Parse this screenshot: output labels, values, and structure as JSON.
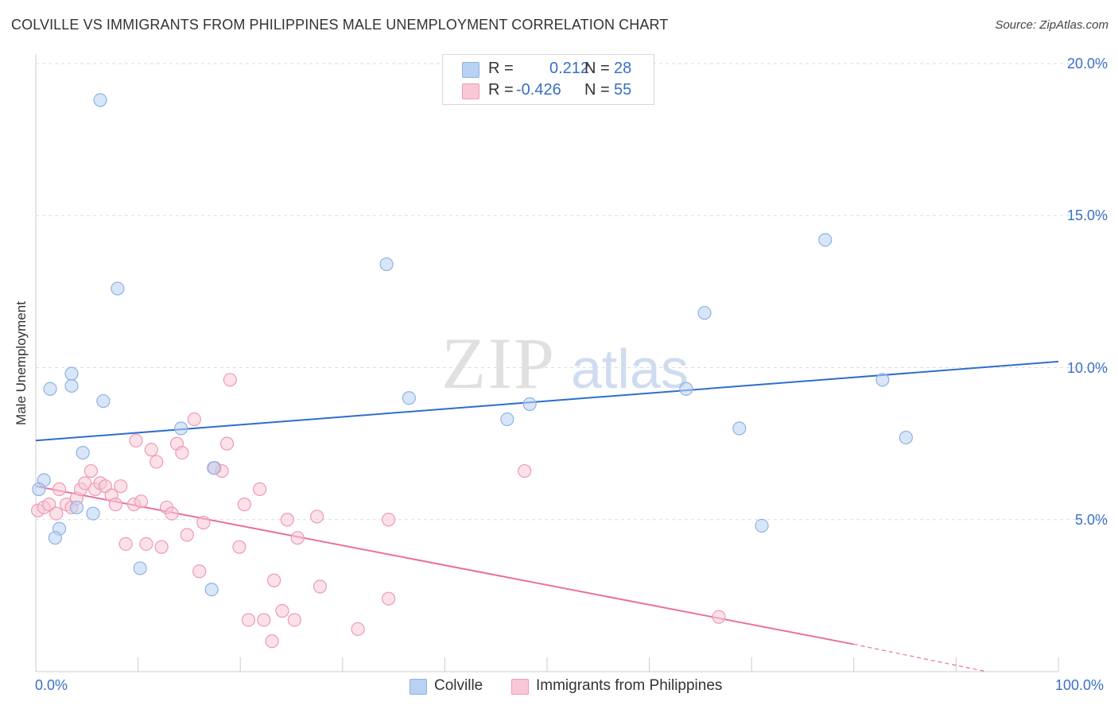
{
  "title": "COLVILLE VS IMMIGRANTS FROM PHILIPPINES MALE UNEMPLOYMENT CORRELATION CHART",
  "source": "Source: ZipAtlas.com",
  "watermark": {
    "zip": "ZIP",
    "atlas": "atlas"
  },
  "legend": {
    "r_label": "R =",
    "n_label": "N =",
    "colville": {
      "r": "0.212",
      "n": "28"
    },
    "philippines": {
      "r": "-0.426",
      "n": "55"
    }
  },
  "colors": {
    "blue_fill": "#b9d1f3",
    "blue_stroke": "#8db2e6",
    "blue_line": "#2e6fca",
    "pink_fill": "#f8c8d6",
    "pink_stroke": "#ee9ab4",
    "pink_line": "#e8719a",
    "axis_text": "#3a6fc4",
    "grid": "#dddddd"
  },
  "chart_data": {
    "type": "scatter",
    "title": "COLVILLE VS IMMIGRANTS FROM PHILIPPINES MALE UNEMPLOYMENT CORRELATION CHART",
    "xlabel": "",
    "ylabel": "Male Unemployment",
    "xlim": [
      0,
      100
    ],
    "ylim": [
      0,
      20
    ],
    "x_tick_labels": [
      "0.0%",
      "100.0%"
    ],
    "y_ticks": [
      5,
      10,
      15,
      20
    ],
    "y_tick_labels": [
      "5.0%",
      "10.0%",
      "15.0%",
      "20.0%"
    ],
    "grid": true,
    "series": [
      {
        "name": "Colville",
        "trend": {
          "x": [
            0,
            100
          ],
          "y": [
            7.6,
            10.2
          ]
        },
        "points": [
          {
            "x": 6.3,
            "y": 18.8
          },
          {
            "x": 8.0,
            "y": 12.6
          },
          {
            "x": 3.5,
            "y": 9.8
          },
          {
            "x": 1.4,
            "y": 9.3
          },
          {
            "x": 3.5,
            "y": 9.4
          },
          {
            "x": 6.6,
            "y": 8.9
          },
          {
            "x": 4.6,
            "y": 7.2
          },
          {
            "x": 14.2,
            "y": 8.0
          },
          {
            "x": 17.4,
            "y": 6.7
          },
          {
            "x": 0.8,
            "y": 6.3
          },
          {
            "x": 0.3,
            "y": 6.0
          },
          {
            "x": 4.0,
            "y": 5.4
          },
          {
            "x": 5.6,
            "y": 5.2
          },
          {
            "x": 2.3,
            "y": 4.7
          },
          {
            "x": 1.9,
            "y": 4.4
          },
          {
            "x": 10.2,
            "y": 3.4
          },
          {
            "x": 17.2,
            "y": 2.7
          },
          {
            "x": 34.3,
            "y": 13.4
          },
          {
            "x": 36.5,
            "y": 9.0
          },
          {
            "x": 46.1,
            "y": 8.3
          },
          {
            "x": 48.3,
            "y": 8.8
          },
          {
            "x": 63.6,
            "y": 9.3
          },
          {
            "x": 65.4,
            "y": 11.8
          },
          {
            "x": 68.8,
            "y": 8.0
          },
          {
            "x": 71.0,
            "y": 4.8
          },
          {
            "x": 77.2,
            "y": 14.2
          },
          {
            "x": 82.8,
            "y": 9.6
          },
          {
            "x": 85.1,
            "y": 7.7
          }
        ]
      },
      {
        "name": "Immigrants from Philippines",
        "trend": {
          "x": [
            0,
            80
          ],
          "y": [
            6.1,
            0.9
          ],
          "dashed_extension": {
            "x": [
              80,
              93
            ],
            "y": [
              0.9,
              0.0
            ]
          }
        },
        "points": [
          {
            "x": 0.2,
            "y": 5.3
          },
          {
            "x": 0.8,
            "y": 5.4
          },
          {
            "x": 1.3,
            "y": 5.5
          },
          {
            "x": 2.0,
            "y": 5.2
          },
          {
            "x": 2.3,
            "y": 6.0
          },
          {
            "x": 3.0,
            "y": 5.5
          },
          {
            "x": 3.5,
            "y": 5.4
          },
          {
            "x": 4.0,
            "y": 5.7
          },
          {
            "x": 4.4,
            "y": 6.0
          },
          {
            "x": 4.8,
            "y": 6.2
          },
          {
            "x": 5.4,
            "y": 6.6
          },
          {
            "x": 5.8,
            "y": 6.0
          },
          {
            "x": 6.3,
            "y": 6.2
          },
          {
            "x": 6.8,
            "y": 6.1
          },
          {
            "x": 7.4,
            "y": 5.8
          },
          {
            "x": 7.8,
            "y": 5.5
          },
          {
            "x": 8.3,
            "y": 6.1
          },
          {
            "x": 8.8,
            "y": 4.2
          },
          {
            "x": 9.6,
            "y": 5.5
          },
          {
            "x": 9.8,
            "y": 7.6
          },
          {
            "x": 10.3,
            "y": 5.6
          },
          {
            "x": 10.8,
            "y": 4.2
          },
          {
            "x": 11.3,
            "y": 7.3
          },
          {
            "x": 11.8,
            "y": 6.9
          },
          {
            "x": 12.3,
            "y": 4.1
          },
          {
            "x": 12.8,
            "y": 5.4
          },
          {
            "x": 13.3,
            "y": 5.2
          },
          {
            "x": 13.8,
            "y": 7.5
          },
          {
            "x": 14.3,
            "y": 7.2
          },
          {
            "x": 14.8,
            "y": 4.5
          },
          {
            "x": 15.5,
            "y": 8.3
          },
          {
            "x": 16.0,
            "y": 3.3
          },
          {
            "x": 16.4,
            "y": 4.9
          },
          {
            "x": 17.5,
            "y": 6.7
          },
          {
            "x": 18.2,
            "y": 6.6
          },
          {
            "x": 18.7,
            "y": 7.5
          },
          {
            "x": 19.0,
            "y": 9.6
          },
          {
            "x": 19.9,
            "y": 4.1
          },
          {
            "x": 20.4,
            "y": 5.5
          },
          {
            "x": 20.8,
            "y": 1.7
          },
          {
            "x": 21.9,
            "y": 6.0
          },
          {
            "x": 22.3,
            "y": 1.7
          },
          {
            "x": 23.1,
            "y": 1.0
          },
          {
            "x": 23.3,
            "y": 3.0
          },
          {
            "x": 24.1,
            "y": 2.0
          },
          {
            "x": 24.6,
            "y": 5.0
          },
          {
            "x": 25.3,
            "y": 1.7
          },
          {
            "x": 25.6,
            "y": 4.4
          },
          {
            "x": 27.5,
            "y": 5.1
          },
          {
            "x": 27.8,
            "y": 2.8
          },
          {
            "x": 31.5,
            "y": 1.4
          },
          {
            "x": 34.5,
            "y": 2.4
          },
          {
            "x": 34.5,
            "y": 5.0
          },
          {
            "x": 47.8,
            "y": 6.6
          },
          {
            "x": 66.8,
            "y": 1.8
          }
        ]
      }
    ]
  },
  "bottom_legend": {
    "colville": "Colville",
    "philippines": "Immigrants from Philippines"
  }
}
